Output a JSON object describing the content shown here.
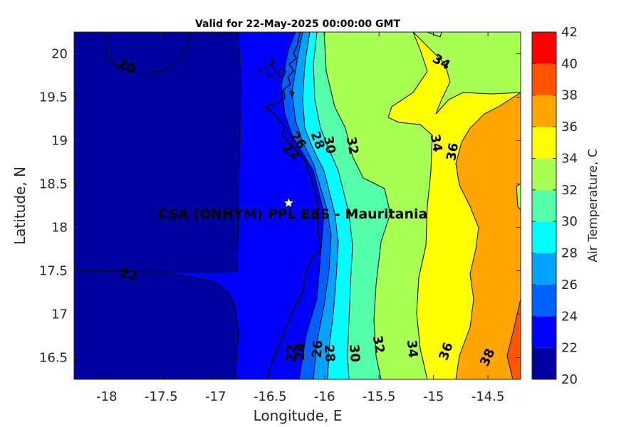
{
  "chart_data": {
    "type": "filled-contour-map",
    "title": "Valid for 22-May-2025 00:00:00 GMT",
    "xlabel": "Longitude, E",
    "ylabel": "Latitude, N",
    "xlim": [
      -18.3,
      -14.2
    ],
    "ylim": [
      16.25,
      20.25
    ],
    "x_ticks": [
      -18,
      -17.5,
      -17,
      -16.5,
      -16,
      -15.5,
      -15,
      -14.5
    ],
    "y_ticks": [
      16.5,
      17,
      17.5,
      18,
      18.5,
      19,
      19.5,
      20
    ],
    "grid": false,
    "colorbar": {
      "label": "Air Temperature, C",
      "min": 20,
      "max": 42,
      "ticks": [
        20,
        22,
        24,
        26,
        28,
        30,
        32,
        34,
        36,
        38,
        40,
        42
      ],
      "levels": [
        {
          "min": 20,
          "max": 22,
          "color": "#00009f"
        },
        {
          "min": 22,
          "max": 24,
          "color": "#0000ff"
        },
        {
          "min": 24,
          "max": 26,
          "color": "#0060ff"
        },
        {
          "min": 26,
          "max": 28,
          "color": "#00a4ff"
        },
        {
          "min": 28,
          "max": 30,
          "color": "#00ffff"
        },
        {
          "min": 30,
          "max": 32,
          "color": "#55ffaa"
        },
        {
          "min": 32,
          "max": 34,
          "color": "#aaff55"
        },
        {
          "min": 34,
          "max": 36,
          "color": "#ffff00"
        },
        {
          "min": 36,
          "max": 38,
          "color": "#ffa400"
        },
        {
          "min": 38,
          "max": 40,
          "color": "#ff5500"
        },
        {
          "min": 40,
          "max": 42,
          "color": "#ff0000"
        },
        {
          "min": 42,
          "max": 44,
          "color": "#aa0000"
        }
      ]
    },
    "contour_labels": [
      {
        "text": "20",
        "lon": -17.82,
        "lat": 19.85,
        "angle": 25
      },
      {
        "text": "22",
        "lon": -17.8,
        "lat": 17.45,
        "angle": 15
      },
      {
        "text": "22",
        "lon": -16.31,
        "lat": 18.87,
        "angle": 40
      },
      {
        "text": "22",
        "lon": -16.3,
        "lat": 16.55,
        "angle": -85
      },
      {
        "text": "24",
        "lon": -16.22,
        "lat": 16.57,
        "angle": -90
      },
      {
        "text": "26",
        "lon": -16.06,
        "lat": 16.6,
        "angle": -85
      },
      {
        "text": "28",
        "lon": -15.96,
        "lat": 16.55,
        "angle": 85
      },
      {
        "text": "30",
        "lon": -15.73,
        "lat": 16.55,
        "angle": 85
      },
      {
        "text": "32",
        "lon": -15.51,
        "lat": 16.65,
        "angle": 80
      },
      {
        "text": "34",
        "lon": -15.2,
        "lat": 16.6,
        "angle": 85
      },
      {
        "text": "36",
        "lon": -14.88,
        "lat": 16.57,
        "angle": -70
      },
      {
        "text": "38",
        "lon": -14.5,
        "lat": 16.5,
        "angle": -65
      },
      {
        "text": "26",
        "lon": -16.25,
        "lat": 19.0,
        "angle": 55
      },
      {
        "text": "28",
        "lon": -16.07,
        "lat": 19.0,
        "angle": 70
      },
      {
        "text": "30",
        "lon": -15.96,
        "lat": 18.95,
        "angle": 80
      },
      {
        "text": "32",
        "lon": -15.75,
        "lat": 18.94,
        "angle": 80
      },
      {
        "text": "34",
        "lon": -14.98,
        "lat": 18.97,
        "angle": 80
      },
      {
        "text": "36",
        "lon": -14.82,
        "lat": 18.87,
        "angle": -80
      },
      {
        "text": "34",
        "lon": -14.93,
        "lat": 19.9,
        "angle": 30
      }
    ],
    "site": {
      "label": "CSA (ONHYM) PPL EBS  - Mauritania",
      "lon": -16.33,
      "lat": 18.28
    }
  }
}
